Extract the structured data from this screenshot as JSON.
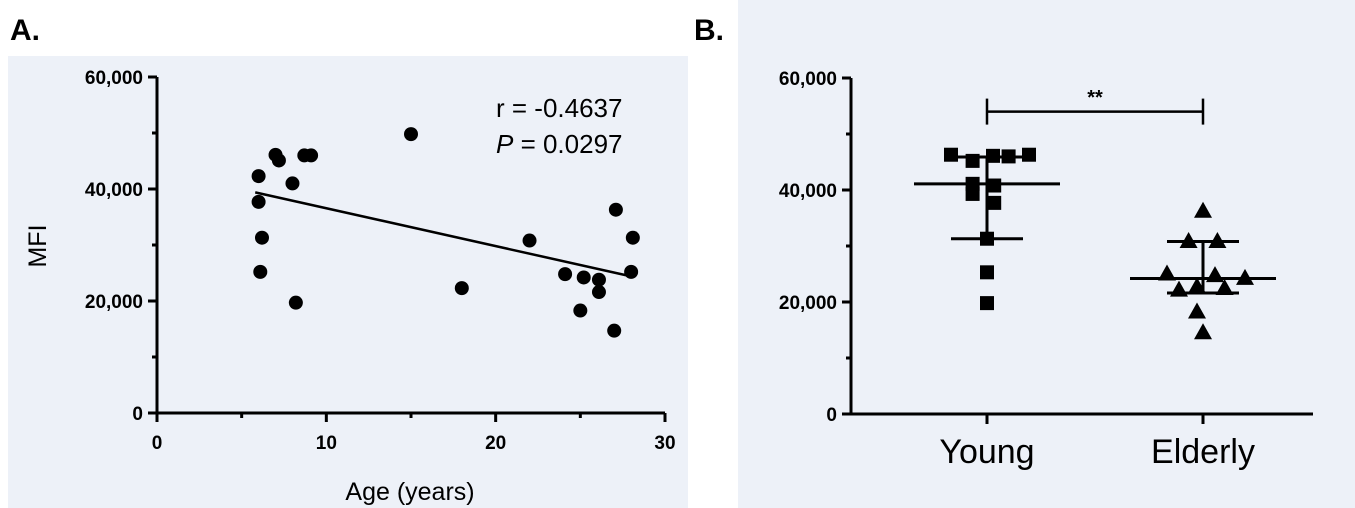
{
  "panel_labels": {
    "a": "A.",
    "b": "B."
  },
  "chart_data": [
    {
      "type": "scatter",
      "panel": "A.",
      "title": "",
      "xlabel": "Age (years)",
      "ylabel": "MFI",
      "xlim": [
        0,
        30
      ],
      "ylim": [
        0,
        60000
      ],
      "x_ticks": [
        "0",
        "10",
        "20",
        "30"
      ],
      "y_ticks": [
        "0",
        "20,000",
        "40,000",
        "60,000"
      ],
      "points": [
        [
          6,
          37700
        ],
        [
          6,
          42300
        ],
        [
          6.2,
          31300
        ],
        [
          6.1,
          25200
        ],
        [
          7,
          46100
        ],
        [
          7.2,
          45100
        ],
        [
          8,
          41000
        ],
        [
          8.2,
          19700
        ],
        [
          8.7,
          46000
        ],
        [
          9.1,
          46000
        ],
        [
          15,
          49800
        ],
        [
          18,
          22300
        ],
        [
          22,
          30800
        ],
        [
          24.1,
          24800
        ],
        [
          25,
          18300
        ],
        [
          25.2,
          24200
        ],
        [
          26.1,
          23800
        ],
        [
          26.1,
          21600
        ],
        [
          27,
          14700
        ],
        [
          27.1,
          36300
        ],
        [
          28,
          25200
        ],
        [
          28.1,
          31300
        ]
      ],
      "regression_line": {
        "x": [
          5.8,
          28
        ],
        "y": [
          39400,
          24400
        ]
      },
      "stats": {
        "r_text": "r = -0.4637",
        "p_symbol": "P",
        "p_text": " = 0.0297"
      },
      "grid": false
    },
    {
      "type": "scatter",
      "panel": "B.",
      "title": "",
      "xlabel": "",
      "ylabel": "",
      "ylim": [
        0,
        60000
      ],
      "y_ticks": [
        "0",
        "20,000",
        "40,000",
        "60,000"
      ],
      "categories": [
        "Young",
        "Elderly"
      ],
      "series": [
        {
          "category": "Young",
          "marker": "square",
          "points": [
            [
              -0.3,
              46300
            ],
            [
              -0.12,
              45200
            ],
            [
              0.05,
              46100
            ],
            [
              0.18,
              46000
            ],
            [
              0.35,
              46300
            ],
            [
              -0.12,
              41100
            ],
            [
              0.06,
              40800
            ],
            [
              -0.12,
              39300
            ],
            [
              0.06,
              37700
            ],
            [
              0.0,
              31300
            ],
            [
              0.0,
              25300
            ],
            [
              0.0,
              19800
            ]
          ],
          "median": 41100,
          "q1": 31300,
          "q3": 45900
        },
        {
          "category": "Elderly",
          "marker": "triangle",
          "points": [
            [
              0.0,
              36300
            ],
            [
              -0.3,
              25100
            ],
            [
              -0.12,
              30900
            ],
            [
              0.12,
              30900
            ],
            [
              0.35,
              24300
            ],
            [
              -0.2,
              22200
            ],
            [
              -0.05,
              22800
            ],
            [
              0.1,
              24800
            ],
            [
              0.18,
              22500
            ],
            [
              -0.05,
              18300
            ],
            [
              0.0,
              14600
            ]
          ],
          "median": 24200,
          "q1": 21600,
          "q3": 30800
        }
      ],
      "significance": {
        "label": "**",
        "y": 54000
      },
      "grid": false
    }
  ]
}
